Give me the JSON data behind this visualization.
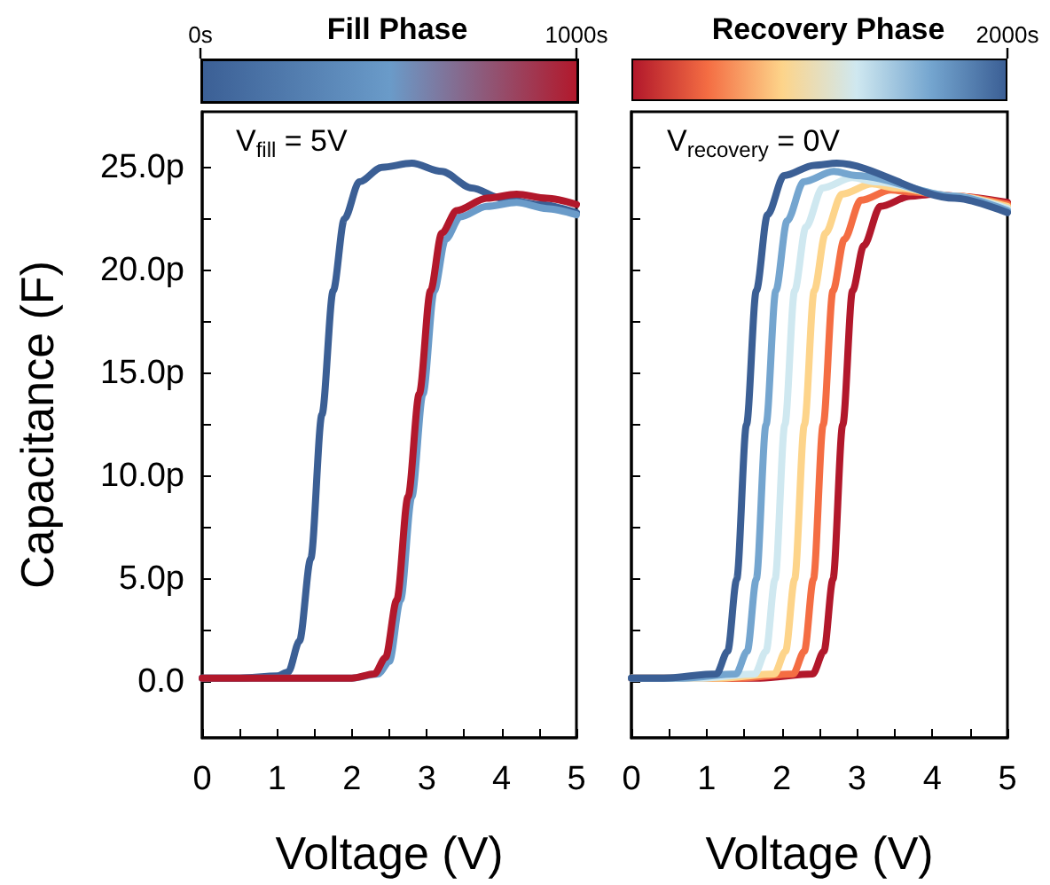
{
  "chart_data": [
    {
      "type": "line",
      "title": "Fill Phase",
      "xlabel": "Voltage (V)",
      "ylabel": "Capacitance (F)",
      "annotations": [
        "V$_{fill}$ = 5V"
      ],
      "clim": [
        0,
        1000
      ],
      "cticks": [
        {
          "value": 0,
          "label": "0s"
        },
        {
          "value": 1000,
          "label": "1000s"
        }
      ],
      "xlim": [
        0,
        5
      ],
      "xticks": [
        0,
        {
          "value": 0.5,
          "label": null
        },
        1,
        {
          "value": 1.5,
          "label": null
        },
        2,
        {
          "value": 2.5,
          "label": null
        },
        3,
        {
          "value": 3.5,
          "label": null
        },
        4,
        {
          "value": 4.5,
          "label": null
        },
        5
      ],
      "ylim": [
        -2.7,
        27.7
      ],
      "yticks": [
        {
          "value": 0,
          "label": "0.0"
        },
        {
          "value": 2.5,
          "label": null
        },
        {
          "value": 5,
          "label": "5.0p"
        },
        {
          "value": 7.5,
          "label": null
        },
        {
          "value": 10,
          "label": "10.0p"
        },
        {
          "value": 12.5,
          "label": null
        },
        {
          "value": 15,
          "label": "15.0p"
        },
        {
          "value": 17.5,
          "label": null
        },
        {
          "value": 20,
          "label": "20.0p"
        },
        {
          "value": 22.5,
          "label": null
        },
        {
          "value": 25,
          "label": "25.0p"
        }
      ],
      "grid": false,
      "marker": "none",
      "line_style": "solid",
      "series": [
        {
          "color": "#3b5f95",
          "x": [
            0,
            0.5,
            1.0,
            1.15,
            1.3,
            1.45,
            1.6,
            1.75,
            1.9,
            2.1,
            2.4,
            2.8,
            3.2,
            3.6,
            4.0,
            4.5,
            5.0
          ],
          "values": [
            0.2,
            0.2,
            0.3,
            0.5,
            2,
            6,
            13,
            19,
            22.5,
            24.3,
            25,
            25.2,
            24.8,
            24,
            23.5,
            23.2,
            22.8
          ]
        },
        {
          "color": "#6a9bc9",
          "x": [
            0,
            1,
            2,
            2.35,
            2.5,
            2.65,
            2.8,
            2.95,
            3.1,
            3.25,
            3.45,
            3.8,
            4.2,
            4.6,
            5
          ],
          "values": [
            0.2,
            0.2,
            0.2,
            0.4,
            1,
            4,
            9,
            14,
            19,
            21.5,
            22.6,
            23.1,
            23.3,
            23.0,
            22.7
          ]
        },
        {
          "color": "#b2182b",
          "x": [
            0,
            1,
            2,
            2.3,
            2.45,
            2.6,
            2.75,
            2.9,
            3.05,
            3.2,
            3.4,
            3.8,
            4.2,
            4.6,
            5.0
          ],
          "values": [
            0.2,
            0.2,
            0.2,
            0.4,
            1.2,
            4,
            9,
            14,
            19,
            21.8,
            22.9,
            23.5,
            23.7,
            23.5,
            23.2
          ]
        }
      ]
    },
    {
      "type": "line",
      "title": "Recovery Phase",
      "xlabel": "Voltage (V)",
      "annotations": [
        "V$_{recovery}$ = 0V",
        "2000s"
      ],
      "xlim": [
        0,
        5
      ],
      "xticks": [
        0,
        {
          "value": 0.5,
          "label": null
        },
        1,
        {
          "value": 1.5,
          "label": null
        },
        2,
        {
          "value": 2.5,
          "label": null
        },
        3,
        {
          "value": 3.5,
          "label": null
        },
        4,
        {
          "value": 4.5,
          "label": null
        },
        5
      ],
      "ylim": [
        -2.7,
        27.7
      ],
      "yticks": [
        0,
        2.5,
        5,
        7.5,
        10,
        12.5,
        15,
        17.5,
        20,
        22.5,
        25
      ],
      "tick_labels": "x",
      "grid": false,
      "marker": "none",
      "line_style": "solid",
      "series": [
        {
          "color": "#b2182b",
          "x": [
            0,
            1.71,
            2.41,
            2.56,
            2.68,
            2.81,
            2.94,
            3.09,
            3.31,
            3.71,
            4.01,
            4.3,
            5
          ],
          "values": [
            0.2,
            0.2,
            0.4,
            1.5,
            5,
            12.5,
            19,
            21.2,
            23.1,
            23.6,
            23.7,
            23.6,
            23.3
          ]
        },
        {
          "color": "#f46d43",
          "x": [
            0,
            1.45,
            2.15,
            2.3,
            2.42,
            2.55,
            2.68,
            2.83,
            3.05,
            3.45,
            3.75,
            4.3,
            5
          ],
          "values": [
            0.2,
            0.2,
            0.4,
            1.5,
            5,
            12.5,
            19,
            21.5,
            23.4,
            23.9,
            23.8,
            23.6,
            23.2
          ]
        },
        {
          "color": "#fdd48a",
          "x": [
            0,
            1.2,
            1.9,
            2.05,
            2.17,
            2.3,
            2.43,
            2.58,
            2.8,
            3.2,
            3.5,
            4.3,
            5
          ],
          "values": [
            0.2,
            0.2,
            0.4,
            1.5,
            5,
            12.5,
            19,
            21.8,
            23.7,
            24.2,
            24.0,
            23.6,
            23.1
          ]
        },
        {
          "color": "#cfe8f0",
          "x": [
            0,
            0.94,
            1.64,
            1.79,
            1.91,
            2.04,
            2.17,
            2.32,
            2.54,
            2.94,
            3.24,
            4.3,
            5
          ],
          "values": [
            0.2,
            0.2,
            0.4,
            1.5,
            5,
            12.5,
            19,
            22.1,
            24.0,
            24.5,
            24.3,
            23.6,
            23.0
          ]
        },
        {
          "color": "#74a5cf",
          "x": [
            0,
            0.69,
            1.39,
            1.54,
            1.66,
            1.79,
            1.92,
            2.07,
            2.29,
            2.69,
            2.99,
            4.3,
            5
          ],
          "values": [
            0.2,
            0.2,
            0.4,
            1.5,
            5,
            12.5,
            19,
            22.4,
            24.3,
            24.8,
            24.6,
            23.6,
            22.9
          ]
        },
        {
          "color": "#3b5f95",
          "x": [
            0,
            0.43,
            1.13,
            1.28,
            1.4,
            1.53,
            1.66,
            1.81,
            2.03,
            2.43,
            2.73,
            4.3,
            5
          ],
          "values": [
            0.2,
            0.2,
            0.4,
            1.5,
            5,
            12.5,
            19,
            22.7,
            24.6,
            25.1,
            25.2,
            23.5,
            22.8
          ]
        }
      ]
    }
  ]
}
